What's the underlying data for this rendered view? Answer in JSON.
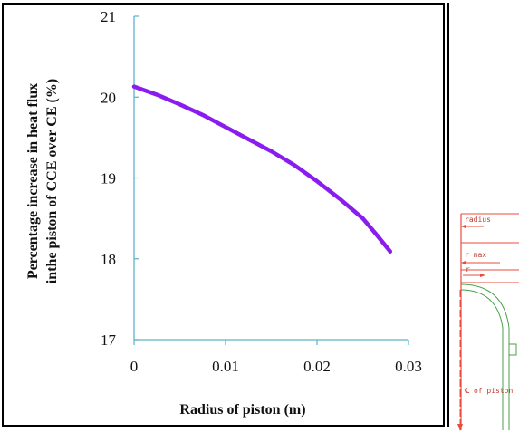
{
  "chart_data": {
    "type": "line",
    "title": "",
    "xlabel": "Radius of piston (m)",
    "ylabel_line1": "Percentage increase in heat flux",
    "ylabel_line2": "inthe piston of  CCE over CE (%)",
    "xlim": [
      0,
      0.03
    ],
    "ylim": [
      17,
      21
    ],
    "x_ticks": [
      "0",
      "0.01",
      "0.02",
      "0.03"
    ],
    "y_ticks": [
      "17",
      "18",
      "19",
      "20",
      "21"
    ],
    "series": [
      {
        "color": "#8b1cf0",
        "points": [
          [
            0,
            20.13
          ],
          [
            0.0025,
            20.03
          ],
          [
            0.005,
            19.91
          ],
          [
            0.0075,
            19.78
          ],
          [
            0.01,
            19.63
          ],
          [
            0.0125,
            19.48
          ],
          [
            0.015,
            19.33
          ],
          [
            0.0175,
            19.16
          ],
          [
            0.02,
            18.96
          ],
          [
            0.0225,
            18.74
          ],
          [
            0.025,
            18.5
          ],
          [
            0.0265,
            18.3
          ],
          [
            0.028,
            18.09
          ]
        ]
      }
    ],
    "axis_color": "#5ab3c8",
    "grid": false
  },
  "diagram": {
    "labels": {
      "radius": "radius",
      "rmax": "r max",
      "r": "r",
      "center": "℄ of piston"
    }
  }
}
